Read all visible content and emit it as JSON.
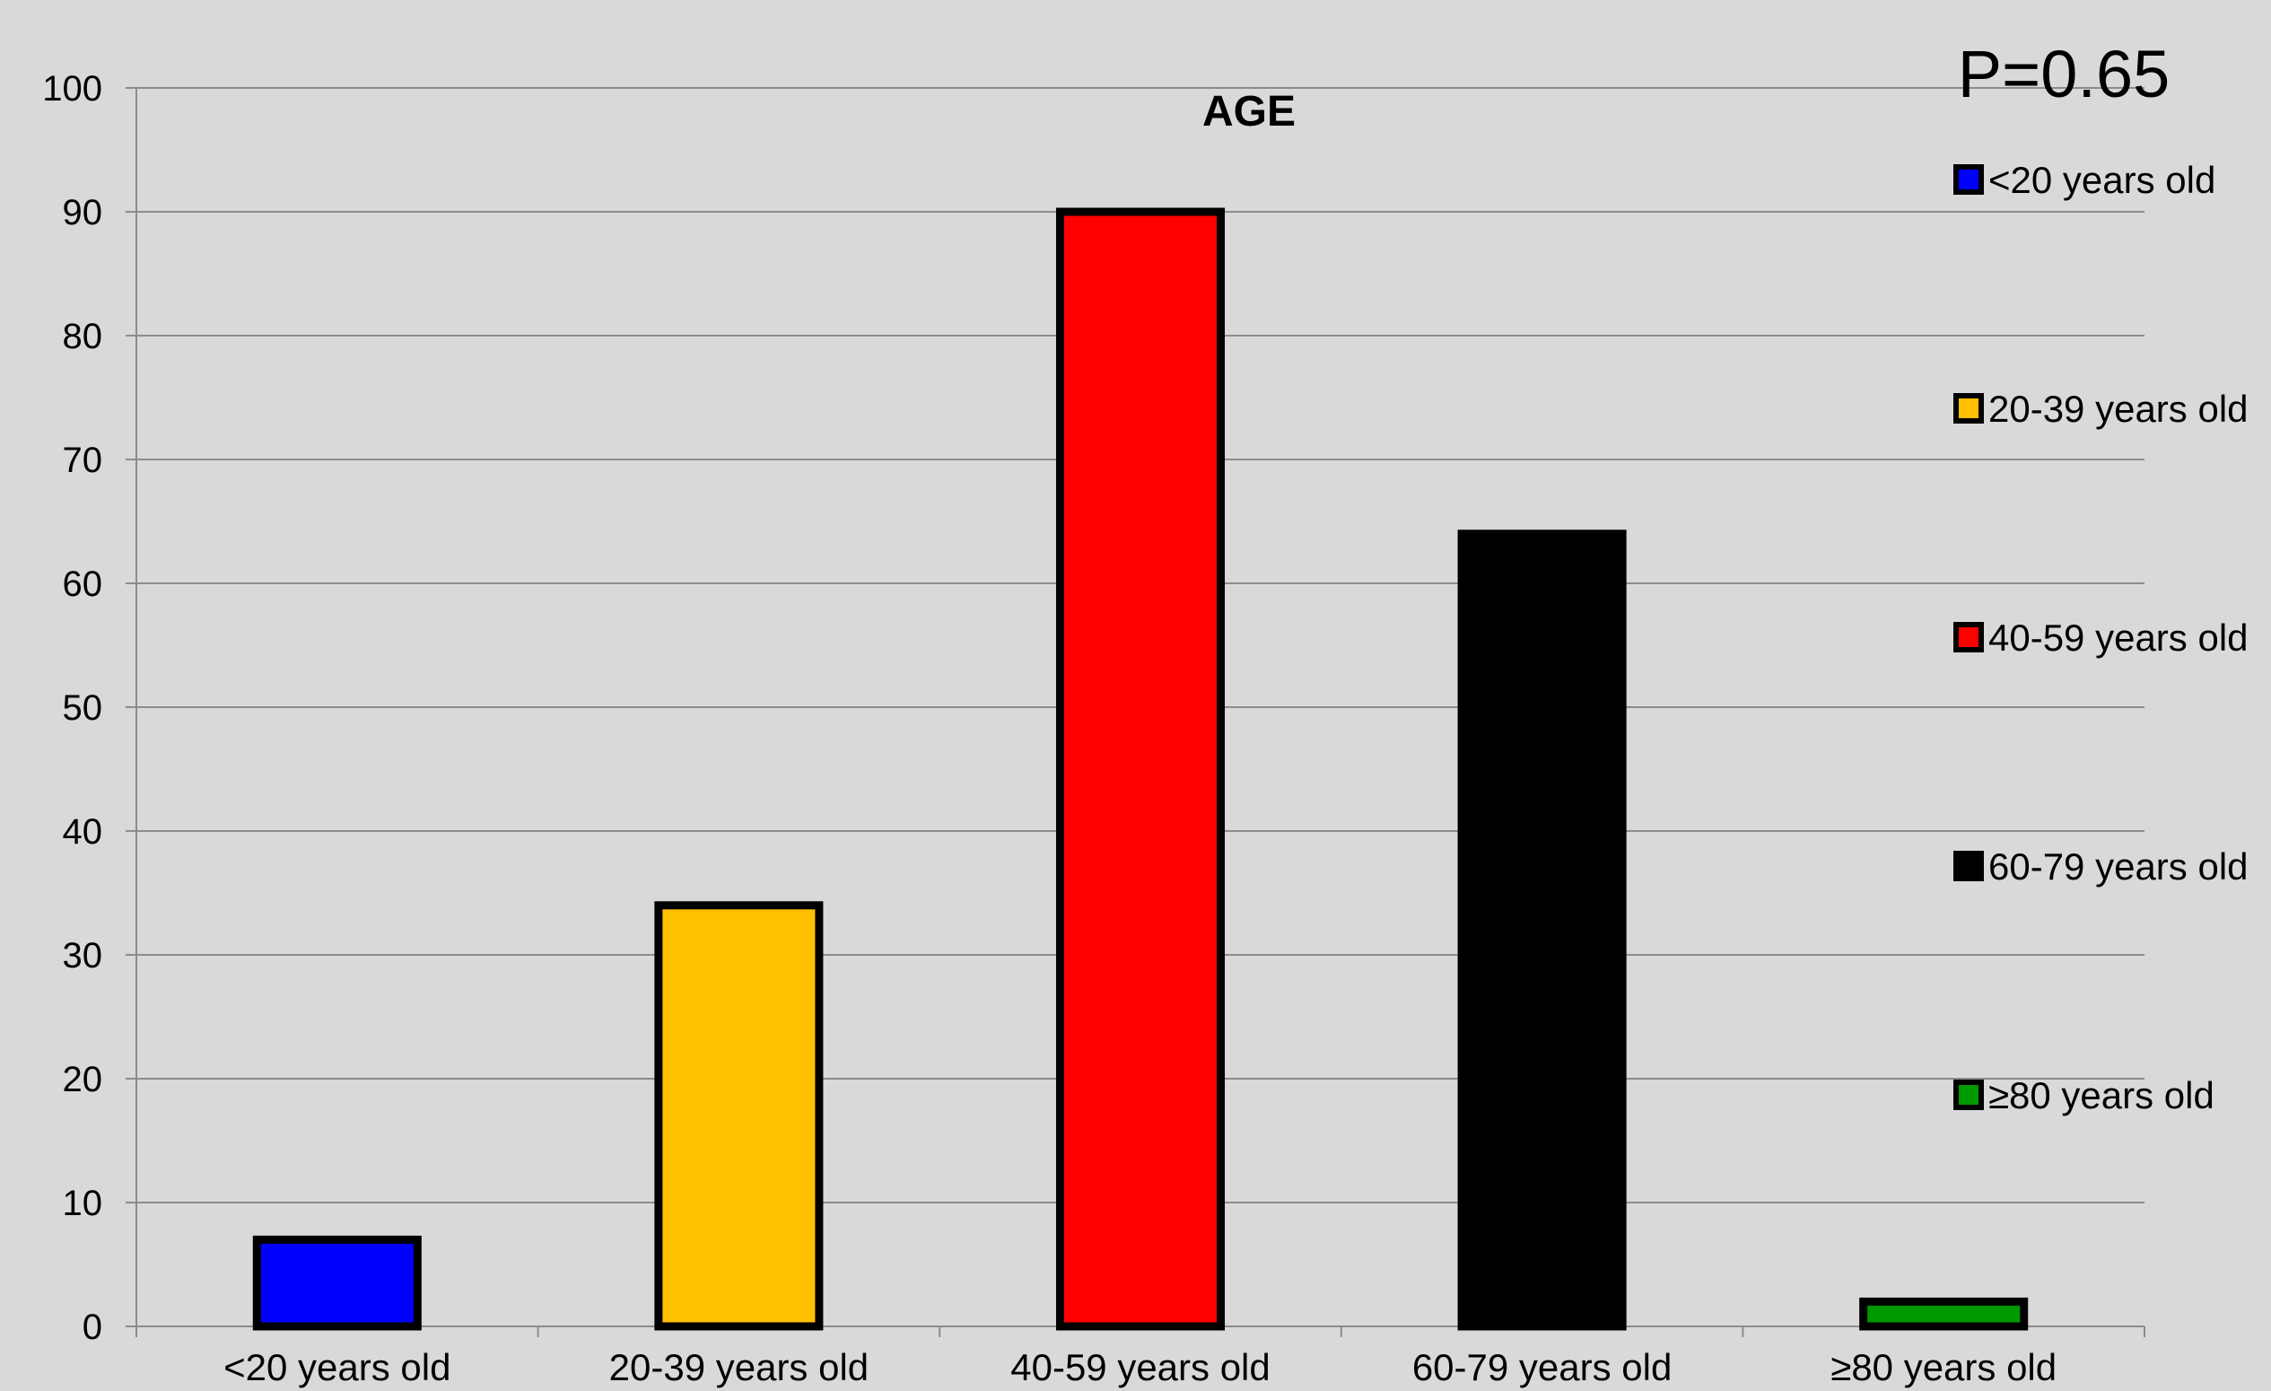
{
  "chart_data": {
    "type": "bar",
    "title": "AGE",
    "annotation": "P=0.65",
    "categories": [
      "<20 years old",
      "20-39 years old",
      "40-59 years old",
      "60-79 years old",
      "≥80 years old"
    ],
    "values": [
      7,
      34,
      90,
      64,
      2
    ],
    "colors": [
      "#0000ff",
      "#ffc000",
      "#ff0000",
      "#000000",
      "#009900"
    ],
    "bar_outline_color": "#000000",
    "ylim": [
      0,
      100
    ],
    "yticks": [
      0,
      10,
      20,
      30,
      40,
      50,
      60,
      70,
      80,
      90,
      100
    ],
    "xlabel": "",
    "ylabel": "",
    "grid": true,
    "legend": {
      "placement": "right",
      "entries": [
        "<20 years old",
        "20-39 years old",
        "40-59 years old",
        "60-79 years old",
        "≥80 years old"
      ]
    }
  }
}
